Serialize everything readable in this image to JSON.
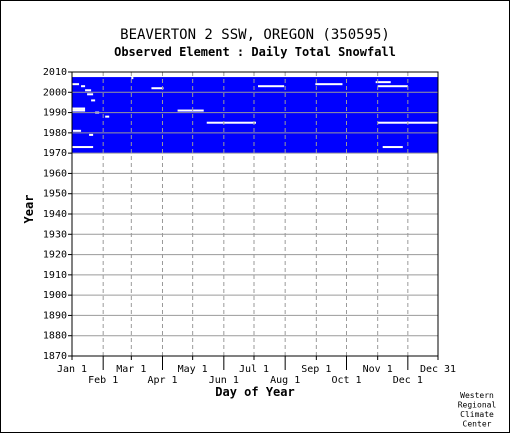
{
  "chart_data": {
    "type": "heatmap",
    "title": "BEAVERTON 2 SSW, OREGON   (350595)",
    "subtitle": "Observed Element : Daily Total Snowfall",
    "xlabel": "Day of Year",
    "ylabel": "Year",
    "xlim": [
      1,
      365
    ],
    "ylim": [
      1870,
      2010
    ],
    "x_ticks_row1": [
      {
        "label": "Jan 1",
        "day": 1
      },
      {
        "label": "Mar 1",
        "day": 60
      },
      {
        "label": "May 1",
        "day": 121
      },
      {
        "label": "Jul 1",
        "day": 182
      },
      {
        "label": "Sep 1",
        "day": 244
      },
      {
        "label": "Nov 1",
        "day": 305
      },
      {
        "label": "Dec 31",
        "day": 365
      }
    ],
    "x_ticks_row2": [
      {
        "label": "Feb 1",
        "day": 32
      },
      {
        "label": "Apr 1",
        "day": 91
      },
      {
        "label": "Jun 1",
        "day": 152
      },
      {
        "label": "Aug 1",
        "day": 213
      },
      {
        "label": "Oct 1",
        "day": 274
      },
      {
        "label": "Dec 1",
        "day": 335
      }
    ],
    "y_ticks": [
      1870,
      1880,
      1890,
      1900,
      1910,
      1920,
      1930,
      1940,
      1950,
      1960,
      1970,
      1980,
      1990,
      2000,
      2010
    ],
    "grid": true,
    "data_color": "#0000ff",
    "data_block": {
      "day_start": 1,
      "day_end": 365,
      "year_start": 1970,
      "year_end": 2007
    },
    "missing_segments": [
      {
        "year": 2004,
        "day_start": 1,
        "day_end": 8
      },
      {
        "year": 2003,
        "day_start": 10,
        "day_end": 14
      },
      {
        "year": 2001,
        "day_start": 14,
        "day_end": 20
      },
      {
        "year": 1999,
        "day_start": 16,
        "day_end": 22
      },
      {
        "year": 1996,
        "day_start": 20,
        "day_end": 24
      },
      {
        "year": 1992,
        "day_start": 1,
        "day_end": 14
      },
      {
        "year": 1991,
        "day_start": 1,
        "day_end": 14
      },
      {
        "year": 1990,
        "day_start": 24,
        "day_end": 28
      },
      {
        "year": 1988,
        "day_start": 34,
        "day_end": 38
      },
      {
        "year": 1981,
        "day_start": 2,
        "day_end": 10
      },
      {
        "year": 1979,
        "day_start": 18,
        "day_end": 22
      },
      {
        "year": 1973,
        "day_start": 1,
        "day_end": 22
      },
      {
        "year": 2007,
        "day_start": 60,
        "day_end": 61
      },
      {
        "year": 2002,
        "day_start": 80,
        "day_end": 92
      },
      {
        "year": 1991,
        "day_start": 106,
        "day_end": 132
      },
      {
        "year": 1985,
        "day_start": 135,
        "day_end": 184
      },
      {
        "year": 2003,
        "day_start": 186,
        "day_end": 212
      },
      {
        "year": 2004,
        "day_start": 243,
        "day_end": 270
      },
      {
        "year": 2005,
        "day_start": 303,
        "day_end": 318
      },
      {
        "year": 2003,
        "day_start": 305,
        "day_end": 335
      },
      {
        "year": 1985,
        "day_start": 305,
        "day_end": 365
      },
      {
        "year": 1973,
        "day_start": 310,
        "day_end": 330
      }
    ],
    "credit": [
      "Western",
      "Regional",
      "Climate",
      "Center"
    ]
  }
}
